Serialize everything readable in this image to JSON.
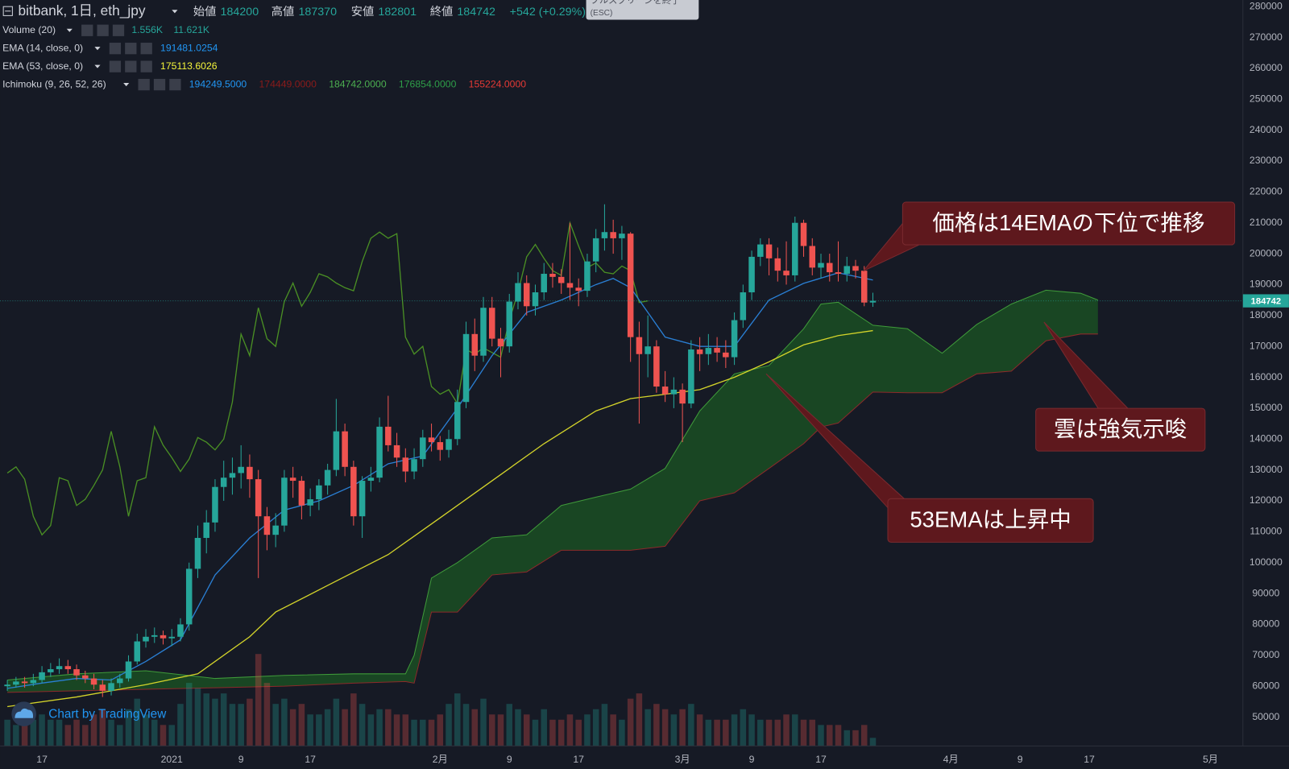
{
  "header": {
    "symbol": "bitbank, 1日, eth_jpy",
    "open_label": "始値",
    "high_label": "高値",
    "low_label": "安値",
    "close_label": "終値",
    "change": "+542 (+0.29%)",
    "tooltip": "フルスクリーンを終了",
    "tooltip_key": "(ESC)",
    "indicators": [
      {
        "name": "Volume (20)",
        "values": [
          "1.556K",
          "11.621K"
        ],
        "colors": [
          "#26a69a",
          "#26a69a"
        ]
      },
      {
        "name": "EMA (14, close, 0)"
      },
      {
        "name": "EMA (53, close, 0)"
      },
      {
        "name": "Ichimoku (9, 26, 52, 26)",
        "values": [
          "194249.5000",
          "174449.0000",
          "184742.0000",
          "176854.0000",
          "155224.0000"
        ],
        "colors": [
          "#2196f3",
          "#8b1a1a",
          "#4caf50",
          "#2e9e48",
          "#e53935"
        ]
      }
    ]
  },
  "watermark": "Chart by TradingView",
  "chart_data": {
    "type": "candlestick",
    "xlim": [
      -4.84,
      138.75
    ],
    "ylim": [
      40640,
      282130
    ],
    "xticks": [
      {
        "value": 0,
        "label": "17"
      },
      {
        "value": 15,
        "label": "2021"
      },
      {
        "value": 23,
        "label": "9"
      },
      {
        "value": 31,
        "label": "17"
      },
      {
        "value": 46,
        "label": "2月"
      },
      {
        "value": 54,
        "label": "9"
      },
      {
        "value": 62,
        "label": "17"
      },
      {
        "value": 74,
        "label": "3月"
      },
      {
        "value": 82,
        "label": "9"
      },
      {
        "value": 90,
        "label": "17"
      },
      {
        "value": 105,
        "label": "4月"
      },
      {
        "value": 113,
        "label": "9"
      },
      {
        "value": 121,
        "label": "17"
      },
      {
        "value": 135,
        "label": "5月"
      }
    ],
    "yticks": [
      280000,
      270000,
      260000,
      250000,
      240000,
      230000,
      220000,
      210000,
      200000,
      190000,
      180000,
      170000,
      160000,
      150000,
      140000,
      130000,
      120000,
      110000,
      100000,
      90000,
      80000,
      70000,
      60000,
      50000
    ],
    "grid": false,
    "up_color": "#26a69a",
    "down_color": "#ef5350",
    "last_price_color": "#26a69a",
    "x": [
      -4,
      -3,
      -2,
      -1,
      0,
      1,
      2,
      3,
      4,
      5,
      6,
      7,
      8,
      9,
      10,
      11,
      12,
      13,
      14,
      15,
      16,
      17,
      18,
      19,
      20,
      21,
      22,
      23,
      24,
      25,
      26,
      27,
      28,
      29,
      30,
      31,
      32,
      33,
      34,
      35,
      36,
      37,
      38,
      39,
      40,
      41,
      42,
      43,
      44,
      45,
      46,
      47,
      48,
      49,
      50,
      51,
      52,
      53,
      54,
      55,
      56,
      57,
      58,
      59,
      60,
      61,
      62,
      63,
      64,
      65,
      66,
      67,
      68,
      69,
      70,
      71,
      72,
      73,
      74,
      75,
      76,
      77,
      78,
      79,
      80,
      81,
      82,
      83,
      84,
      85,
      86,
      87,
      88,
      89,
      90,
      91,
      92,
      93,
      94,
      95,
      96
    ],
    "candles": [
      [
        60000,
        62000,
        58500,
        60500
      ],
      [
        60500,
        63000,
        59500,
        61500
      ],
      [
        61500,
        63000,
        59500,
        61000
      ],
      [
        61000,
        64000,
        60000,
        62000
      ],
      [
        62000,
        66500,
        61000,
        64500
      ],
      [
        64500,
        67500,
        63000,
        65500
      ],
      [
        65500,
        69000,
        64000,
        66500
      ],
      [
        66500,
        68500,
        64000,
        65500
      ],
      [
        65500,
        67000,
        62000,
        63500
      ],
      [
        63500,
        65000,
        61000,
        62500
      ],
      [
        62500,
        64000,
        59000,
        60500
      ],
      [
        60500,
        62000,
        56500,
        58500
      ],
      [
        58500,
        62500,
        57000,
        61000
      ],
      [
        61000,
        64000,
        59500,
        62500
      ],
      [
        62500,
        70000,
        61500,
        68000
      ],
      [
        68000,
        77000,
        67000,
        74500
      ],
      [
        74500,
        78500,
        72500,
        76000
      ],
      [
        76000,
        79000,
        74000,
        76500
      ],
      [
        76500,
        78000,
        73500,
        75500
      ],
      [
        75500,
        78500,
        73000,
        76000
      ],
      [
        76000,
        82000,
        74500,
        80000
      ],
      [
        80000,
        100000,
        78000,
        98000
      ],
      [
        98000,
        112000,
        95000,
        108000
      ],
      [
        108000,
        117000,
        103000,
        113000
      ],
      [
        113000,
        127000,
        110000,
        124500
      ],
      [
        124500,
        133000,
        120000,
        127500
      ],
      [
        127500,
        134000,
        122000,
        129000
      ],
      [
        129000,
        138000,
        124000,
        131000
      ],
      [
        131000,
        135000,
        121000,
        127000
      ],
      [
        127000,
        130000,
        95000,
        115000
      ],
      [
        115000,
        118000,
        104000,
        109000
      ],
      [
        109000,
        116000,
        105000,
        112000
      ],
      [
        112000,
        130000,
        110000,
        127500
      ],
      [
        127500,
        131000,
        121000,
        126500
      ],
      [
        126500,
        128000,
        114000,
        118500
      ],
      [
        118500,
        124000,
        115000,
        120500
      ],
      [
        120500,
        127000,
        117000,
        125000
      ],
      [
        125000,
        132000,
        122000,
        130000
      ],
      [
        130000,
        153000,
        128000,
        142500
      ],
      [
        142500,
        145000,
        128000,
        131000
      ],
      [
        131000,
        133000,
        112000,
        115000
      ],
      [
        115000,
        128000,
        108000,
        126500
      ],
      [
        126500,
        131000,
        123000,
        127500
      ],
      [
        127500,
        147000,
        126000,
        144000
      ],
      [
        144000,
        154000,
        136000,
        138000
      ],
      [
        138000,
        142000,
        131000,
        134000
      ],
      [
        134000,
        137000,
        126000,
        129500
      ],
      [
        129500,
        137000,
        127000,
        133500
      ],
      [
        133500,
        143000,
        131000,
        140500
      ],
      [
        140500,
        145000,
        136000,
        139000
      ],
      [
        139000,
        141000,
        133000,
        136500
      ],
      [
        136500,
        143000,
        134000,
        140000
      ],
      [
        140000,
        156000,
        138000,
        152000
      ],
      [
        152000,
        178000,
        150000,
        174000
      ],
      [
        174000,
        179000,
        162000,
        167000
      ],
      [
        167000,
        186000,
        165000,
        182500
      ],
      [
        182500,
        186000,
        170000,
        172500
      ],
      [
        172500,
        176000,
        160000,
        170000
      ],
      [
        170000,
        187000,
        168000,
        184500
      ],
      [
        184500,
        194000,
        182000,
        190500
      ],
      [
        190500,
        193000,
        180000,
        183000
      ],
      [
        183000,
        190000,
        180000,
        187500
      ],
      [
        187500,
        197000,
        185000,
        193500
      ],
      [
        193500,
        197000,
        189000,
        192500
      ],
      [
        192500,
        195000,
        187000,
        190500
      ],
      [
        190500,
        210000,
        185000,
        189000
      ],
      [
        189000,
        192000,
        183000,
        188000
      ],
      [
        188000,
        200000,
        186000,
        197500
      ],
      [
        197500,
        208000,
        194000,
        205000
      ],
      [
        205000,
        216000,
        201000,
        207000
      ],
      [
        207000,
        211000,
        200000,
        205000
      ],
      [
        205000,
        209000,
        198000,
        206500
      ],
      [
        206500,
        207000,
        165000,
        173000
      ],
      [
        173000,
        178000,
        145000,
        167500
      ],
      [
        167500,
        180000,
        160000,
        170000
      ],
      [
        170000,
        172000,
        155000,
        157000
      ],
      [
        157000,
        162000,
        152000,
        154500
      ],
      [
        154500,
        160000,
        150000,
        156000
      ],
      [
        156000,
        158000,
        139000,
        151500
      ],
      [
        151500,
        172000,
        150000,
        169000
      ],
      [
        169000,
        173000,
        162000,
        167500
      ],
      [
        167500,
        174000,
        164000,
        169500
      ],
      [
        169500,
        173000,
        165000,
        168000
      ],
      [
        168000,
        172000,
        163000,
        166500
      ],
      [
        166500,
        181000,
        164000,
        178500
      ],
      [
        178500,
        190000,
        176000,
        187500
      ],
      [
        187500,
        201000,
        185000,
        199000
      ],
      [
        199000,
        205000,
        196000,
        203000
      ],
      [
        203000,
        205000,
        193000,
        198500
      ],
      [
        198500,
        202000,
        191000,
        194500
      ],
      [
        194500,
        204000,
        190000,
        193000
      ],
      [
        193000,
        212000,
        191000,
        210000
      ],
      [
        210000,
        211000,
        199000,
        202500
      ],
      [
        202500,
        205000,
        193000,
        195500
      ],
      [
        195500,
        200000,
        192000,
        197000
      ],
      [
        197000,
        200000,
        191000,
        194000
      ],
      [
        194000,
        204000,
        191000,
        193500
      ],
      [
        193500,
        199000,
        191000,
        196000
      ],
      [
        196000,
        198000,
        192000,
        194500
      ],
      [
        194500,
        196000,
        183000,
        184200
      ],
      [
        184200,
        187370,
        182801,
        184742
      ]
    ],
    "volume": [
      5,
      4,
      4,
      5,
      6,
      5,
      5,
      4,
      5,
      4,
      6,
      7,
      5,
      4,
      7,
      9,
      6,
      5,
      4,
      4,
      8,
      12,
      11,
      10,
      9,
      10,
      8,
      8,
      9,
      17.5,
      12,
      8,
      9,
      7,
      8,
      6,
      6,
      7,
      9,
      7,
      10,
      8,
      6,
      7,
      7,
      6,
      6,
      5,
      5,
      5,
      6,
      8,
      10,
      8,
      7,
      9,
      6,
      6,
      8,
      7,
      6,
      5,
      7,
      5,
      5,
      6,
      5,
      6,
      7,
      8,
      6,
      5,
      9,
      10,
      7,
      8,
      7,
      6,
      7,
      8,
      6,
      5,
      5,
      5,
      6,
      7,
      6,
      5,
      5,
      5,
      6,
      6,
      5,
      5,
      4,
      4,
      4,
      3,
      3,
      4,
      1.556
    ],
    "volume_ylim": [
      0,
      70
    ],
    "ema": [
      {
        "name": "EMA (14, close, 0)",
        "color": "#2a7fd4",
        "x": [
          -4,
          0,
          4,
          8,
          12,
          16,
          20,
          24,
          28,
          32,
          36,
          40,
          44,
          48,
          52,
          56,
          60,
          64,
          66,
          68,
          72,
          76,
          80,
          84,
          88,
          92,
          96
        ],
        "values": [
          59300,
          61000,
          62500,
          62000,
          68000,
          75000,
          96000,
          108000,
          117000,
          120000,
          125000,
          132000,
          134500,
          150000,
          167000,
          181000,
          185000,
          190000,
          192000,
          189000,
          173000,
          170000,
          170000,
          185000,
          190400,
          193800,
          191481.0254
        ]
      },
      {
        "name": "EMA (53, close, 0)",
        "color": "#d4d42a",
        "x": [
          -4,
          4,
          12,
          18,
          24,
          27,
          33,
          40,
          46,
          52,
          58,
          64,
          68,
          72,
          76,
          80,
          84,
          88,
          92,
          96
        ],
        "values": [
          53400,
          56500,
          60500,
          64000,
          76000,
          84000,
          92600,
          102600,
          114500,
          126500,
          138500,
          149100,
          153100,
          154500,
          156000,
          160000,
          165000,
          170500,
          173500,
          175113.6026
        ]
      }
    ],
    "ichimoku": {
      "lagging_shift": 26,
      "lagging_color": "#4a8f24",
      "cloud_color": "#1e6b22",
      "span_a_color": "#3f9a3a",
      "span_b_color": "#8b2a2a",
      "x": [
        -4,
        4,
        12,
        20,
        28,
        36,
        42,
        43,
        45,
        48,
        52,
        56,
        60,
        64,
        68,
        72,
        76,
        80,
        84,
        88,
        90,
        92,
        96,
        100,
        104,
        108,
        112,
        116,
        120,
        122
      ],
      "span_a": [
        62000,
        64000,
        65000,
        62500,
        63500,
        64000,
        64000,
        70000,
        95000,
        100000,
        108000,
        109000,
        118500,
        121200,
        123800,
        130500,
        149100,
        161100,
        163800,
        175700,
        183700,
        184300,
        176854,
        175700,
        167800,
        177100,
        183700,
        188200,
        187200,
        185000
      ],
      "span_b": [
        58000,
        58500,
        59000,
        59500,
        60000,
        61000,
        61500,
        61000,
        84000,
        84000,
        96000,
        97000,
        104000,
        104000,
        104000,
        105300,
        120000,
        122600,
        130500,
        138500,
        143900,
        145200,
        155224,
        155000,
        155000,
        161100,
        162000,
        171800,
        174000,
        174000
      ]
    },
    "annotations": [
      "価格は14EMAの下位で推移",
      "雲は強気示唆",
      "53EMAは上昇中"
    ]
  }
}
